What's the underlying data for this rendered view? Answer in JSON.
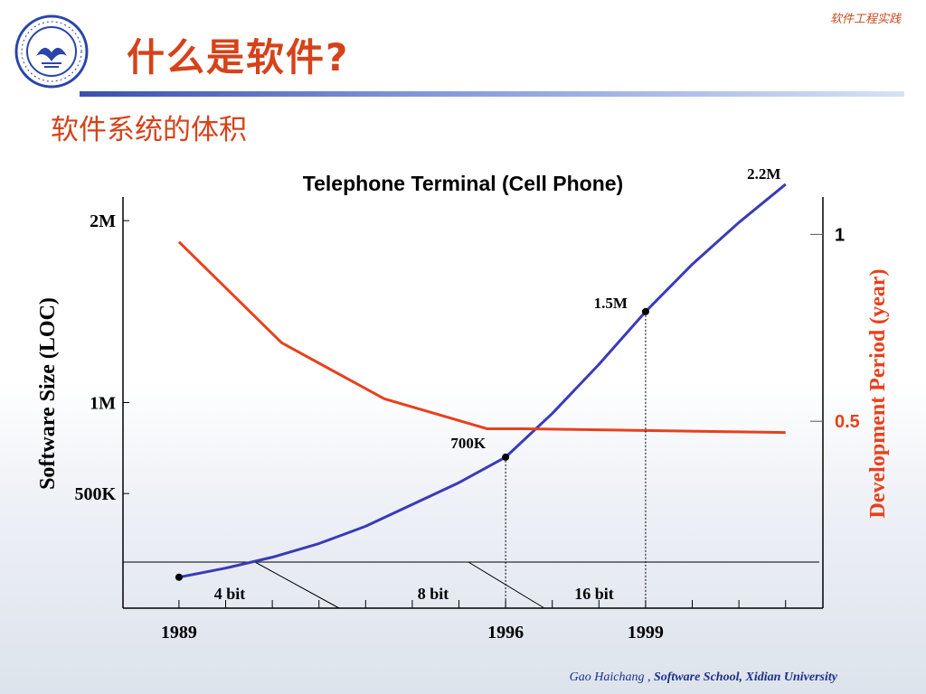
{
  "header": {
    "course": "软件工程实践"
  },
  "slide": {
    "title": "什么是软件?",
    "subtitle": "软件系统的体积"
  },
  "logo": {
    "icon": "university-seal-icon"
  },
  "footer": {
    "author": "Gao Haichang ,",
    "org": "Software School,  Xidian University"
  },
  "colors": {
    "title": "#d6421a",
    "size_line": "#3a3ab8",
    "period_line": "#e8401c",
    "footer": "#1d2f8c"
  },
  "chart_data": {
    "type": "line",
    "title": "Telephone Terminal (Cell Phone)",
    "ylabel_left": "Software Size (LOC)",
    "ylabel_right": "Development Period (year)",
    "left_ticks": [
      "500K",
      "1M",
      "2M"
    ],
    "right_ticks": [
      "0.5",
      "1"
    ],
    "x_ticks": [
      "1989",
      "1996",
      "1999"
    ],
    "cpu_segments": [
      "4 bit",
      "8 bit",
      "16 bit"
    ],
    "series": [
      {
        "name": "Software Size (LOC)",
        "axis": "left",
        "x": [
          1989,
          1990,
          1991,
          1992,
          1993,
          1994,
          1995,
          1996,
          1997,
          1998,
          1999,
          2000,
          2001,
          2002
        ],
        "values": [
          40,
          90,
          150,
          225,
          320,
          440,
          560,
          700,
          940,
          1210,
          1500,
          1760,
          1990,
          2200
        ]
      },
      {
        "name": "Development Period (year)",
        "axis": "right",
        "x": [
          1989,
          1991.2,
          1993.4,
          1995.6,
          1996.4,
          2002
        ],
        "values": [
          0.98,
          0.71,
          0.56,
          0.48,
          0.48,
          0.47
        ]
      }
    ],
    "annotations": [
      {
        "x": 1989,
        "y": 40,
        "label": ""
      },
      {
        "x": 1996,
        "y": 700,
        "label": "700K"
      },
      {
        "x": 1999,
        "y": 1500,
        "label": "1.5M"
      },
      {
        "x": 2002,
        "y": 2200,
        "label": "2.2M"
      }
    ],
    "xlim": [
      1987.8,
      2002.8
    ],
    "ylim_left": [
      -130,
      2130
    ],
    "ylim_right": [
      0,
      1.1
    ],
    "grid": false
  }
}
